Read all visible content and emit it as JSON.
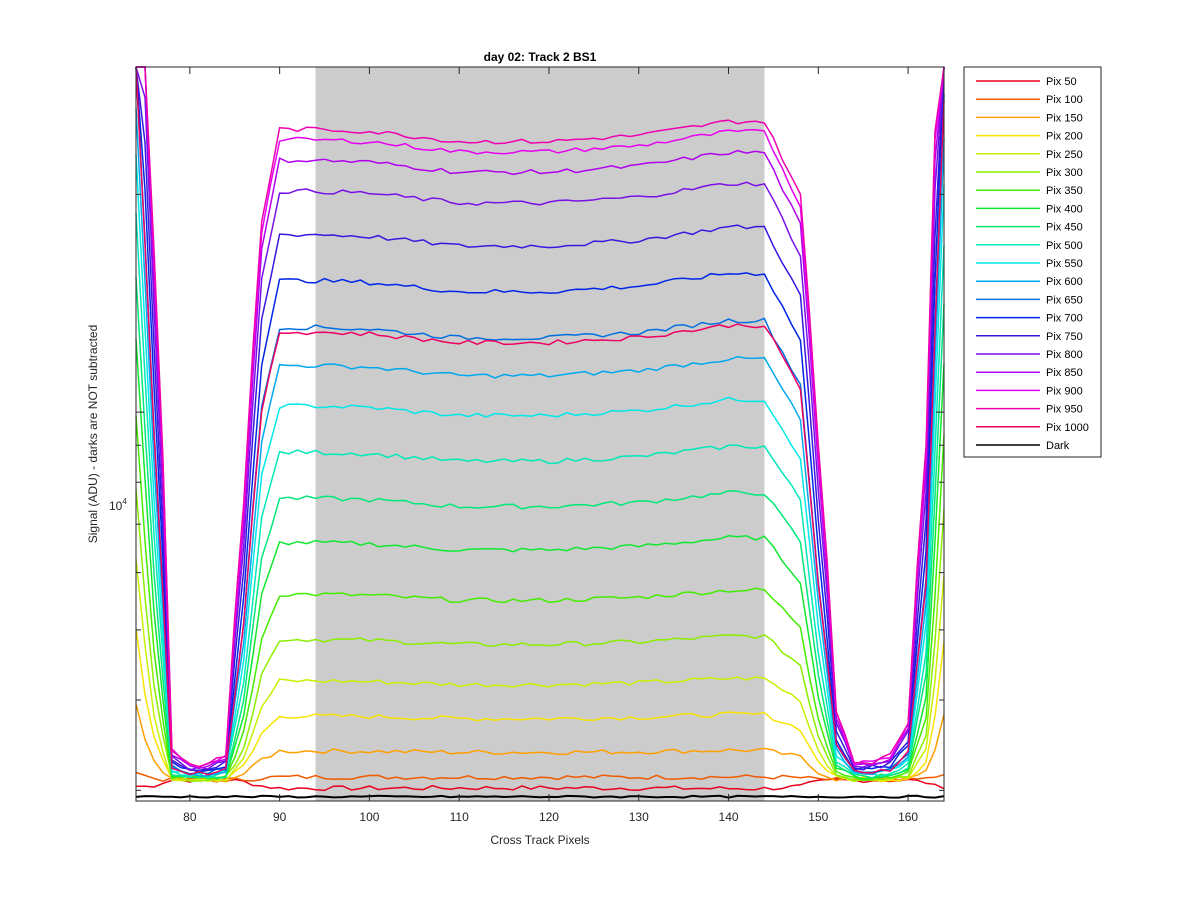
{
  "chart_data": {
    "type": "line",
    "title": "day 02: Track 2  BS1",
    "xlabel": "Cross Track Pixels",
    "ylabel": "Signal (ADU) - darks are NOT subtracted",
    "xlim": [
      74,
      164
    ],
    "x_ticks": [
      80,
      90,
      100,
      110,
      120,
      130,
      140,
      150,
      160
    ],
    "x_tick_labels": [
      "80",
      "90",
      "100",
      "110",
      "120",
      "130",
      "140",
      "150",
      "160"
    ],
    "y_scale": "log",
    "ylim": [
      2900,
      30000
    ],
    "y_tick_label": {
      "value": 10000,
      "base": "10",
      "exponent": "4"
    },
    "shaded_region": {
      "x": [
        94,
        144
      ],
      "color": "#cccccc"
    },
    "grid": false,
    "legend": {
      "location": "outside-top-right"
    },
    "plateau_profile": {
      "x": [
        74,
        76,
        78,
        80,
        82,
        84,
        86,
        88,
        90,
        94,
        100,
        110,
        120,
        130,
        140,
        144,
        148,
        150,
        152,
        154,
        156,
        158,
        160,
        162,
        164
      ],
      "levels": [
        22000,
        7500,
        3200,
        3150,
        3150,
        3180,
        4500,
        8000,
        10000,
        10000,
        9950,
        9700,
        9700,
        9850,
        10200,
        10200,
        8500,
        5000,
        3350,
        3160,
        3160,
        3180,
        3300,
        5000,
        20000
      ]
    },
    "series": [
      {
        "name": "Pix 50",
        "color": "#e8001c",
        "plateau": 3020
      },
      {
        "name": "Pix 100",
        "color": "#f05a00",
        "plateau": 3130
      },
      {
        "name": "Pix 150",
        "color": "#ff9f00",
        "plateau": 3400
      },
      {
        "name": "Pix 200",
        "color": "#f7e400",
        "plateau": 3800
      },
      {
        "name": "Pix 250",
        "color": "#c8f000",
        "plateau": 4250
      },
      {
        "name": "Pix 300",
        "color": "#8bee00",
        "plateau": 4850
      },
      {
        "name": "Pix 350",
        "color": "#45ec00",
        "plateau": 5600
      },
      {
        "name": "Pix 400",
        "color": "#10e830",
        "plateau": 6600
      },
      {
        "name": "Pix 450",
        "color": "#00e87a",
        "plateau": 7600
      },
      {
        "name": "Pix 500",
        "color": "#00e8b8",
        "plateau": 8800
      },
      {
        "name": "Pix 550",
        "color": "#00e8e8",
        "plateau": 10200
      },
      {
        "name": "Pix 600",
        "color": "#00a8ee",
        "plateau": 11600
      },
      {
        "name": "Pix 650",
        "color": "#0070e0",
        "plateau": 13100
      },
      {
        "name": "Pix 700",
        "color": "#0026e8",
        "plateau": 15200
      },
      {
        "name": "Pix 750",
        "color": "#3818e0",
        "plateau": 17600
      },
      {
        "name": "Pix 800",
        "color": "#7a10e8",
        "plateau": 20200
      },
      {
        "name": "Pix 850",
        "color": "#b000ee",
        "plateau": 22300
      },
      {
        "name": "Pix 900",
        "color": "#e800f0",
        "plateau": 23800
      },
      {
        "name": "Pix 950",
        "color": "#ee00b0",
        "plateau": 24600
      },
      {
        "name": "Pix 1000",
        "color": "#ee0060",
        "plateau": 12900
      },
      {
        "name": "Dark",
        "color": "#000000",
        "plateau": 2940
      }
    ]
  }
}
